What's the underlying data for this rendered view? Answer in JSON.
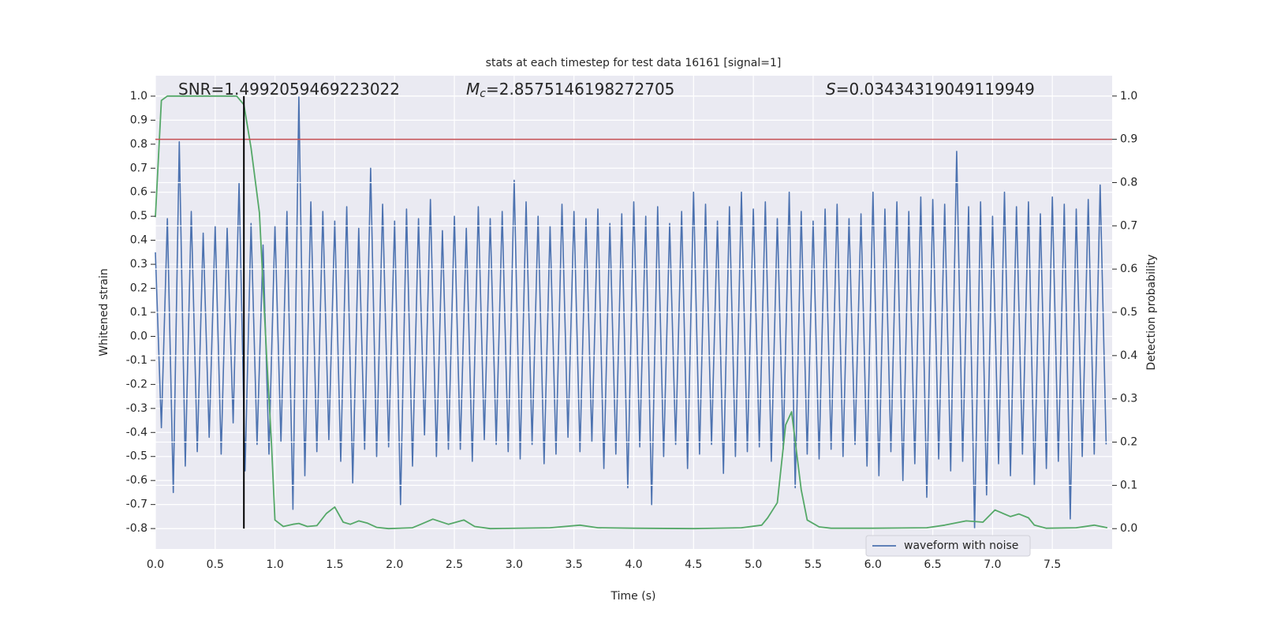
{
  "chart_data": {
    "type": "line",
    "title": "stats at each timestep for test data 16161 [signal=1]",
    "xlabel": "Time (s)",
    "ylabel": "Whitened strain",
    "y2label": "Detection probability",
    "annotations": [
      {
        "text": "SNR=1.4992059469223022"
      },
      {
        "symbol": "M",
        "subscript": "c",
        "text": "=2.8575146198272705"
      },
      {
        "symbol": "S",
        "text": "=0.03434319049119949"
      }
    ],
    "xlim": [
      0,
      8.0
    ],
    "ylim": [
      -0.885,
      1.085
    ],
    "y2lim": [
      -0.047,
      1.047
    ],
    "xticks": [
      {
        "value": 0,
        "label": "0.0"
      },
      0.5,
      {
        "value": 1,
        "label": "1.0"
      },
      1.5,
      {
        "value": 2,
        "label": "2.0"
      },
      2.5,
      {
        "value": 3,
        "label": "3.0"
      },
      3.5,
      {
        "value": 4,
        "label": "4.0"
      },
      4.5,
      {
        "value": 5,
        "label": "5.0"
      },
      5.5,
      {
        "value": 6,
        "label": "6.0"
      },
      6.5,
      {
        "value": 7,
        "label": "7.0"
      },
      7.5
    ],
    "yticks": [
      -0.8,
      -0.7,
      -0.6,
      -0.5,
      -0.4,
      -0.3,
      -0.2,
      -0.1,
      {
        "value": 0,
        "label": "0.0"
      },
      0.1,
      0.2,
      0.3,
      0.4,
      0.5,
      0.6,
      0.7,
      0.8,
      0.9,
      {
        "value": 1,
        "label": "1.0"
      }
    ],
    "y2ticks": [
      {
        "value": 0,
        "label": "0.0"
      },
      0.1,
      0.2,
      0.3,
      0.4,
      0.5,
      0.6,
      0.7,
      0.8,
      0.9,
      {
        "value": 1,
        "label": "1.0"
      }
    ],
    "grid": true,
    "legend": "lower right",
    "series": [
      {
        "name": "waveform with noise",
        "color": "#4c72b0",
        "x": [
          0,
          0.05,
          0.1,
          0.15,
          0.2,
          0.25,
          0.3,
          0.35,
          0.4,
          0.45,
          0.5,
          0.55,
          0.6,
          0.65,
          0.7,
          0.75,
          0.8,
          0.85,
          0.9,
          0.95,
          1,
          1.05,
          1.1,
          1.15,
          1.2,
          1.25,
          1.3,
          1.35,
          1.4,
          1.45,
          1.5,
          1.55,
          1.6,
          1.65,
          1.7,
          1.75,
          1.8,
          1.85,
          1.9,
          1.95,
          2,
          2.05,
          2.1,
          2.15,
          2.2,
          2.25,
          2.3,
          2.35,
          2.4,
          2.45,
          2.5,
          2.55,
          2.6,
          2.65,
          2.7,
          2.75,
          2.8,
          2.85,
          2.9,
          2.95,
          3,
          3.05,
          3.1,
          3.15,
          3.2,
          3.25,
          3.3,
          3.35,
          3.4,
          3.45,
          3.5,
          3.55,
          3.6,
          3.65,
          3.7,
          3.75,
          3.8,
          3.85,
          3.9,
          3.95,
          4,
          4.05,
          4.1,
          4.15,
          4.2,
          4.25,
          4.3,
          4.35,
          4.4,
          4.45,
          4.5,
          4.55,
          4.6,
          4.65,
          4.7,
          4.75,
          4.8,
          4.85,
          4.9,
          4.95,
          5,
          5.05,
          5.1,
          5.15,
          5.2,
          5.25,
          5.3,
          5.35,
          5.4,
          5.45,
          5.5,
          5.55,
          5.6,
          5.65,
          5.7,
          5.75,
          5.8,
          5.85,
          5.9,
          5.95,
          6,
          6.05,
          6.1,
          6.15,
          6.2,
          6.25,
          6.3,
          6.35,
          6.4,
          6.45,
          6.5,
          6.55,
          6.6,
          6.65,
          6.7,
          6.75,
          6.8,
          6.85,
          6.9,
          6.95,
          7,
          7.05,
          7.1,
          7.15,
          7.2,
          7.25,
          7.3,
          7.35,
          7.4,
          7.45,
          7.5,
          7.55,
          7.6,
          7.65,
          7.7,
          7.75,
          7.8,
          7.85,
          7.9,
          7.95
        ],
        "values": [
          0.35,
          -0.38,
          0.49,
          -0.65,
          0.81,
          -0.54,
          0.52,
          -0.48,
          0.43,
          -0.42,
          0.46,
          -0.49,
          0.45,
          -0.36,
          0.64,
          -0.56,
          0.47,
          -0.45,
          0.38,
          -0.49,
          0.46,
          -0.44,
          0.52,
          -0.72,
          1.0,
          -0.58,
          0.56,
          -0.48,
          0.52,
          -0.43,
          0.48,
          -0.52,
          0.54,
          -0.61,
          0.45,
          -0.47,
          0.7,
          -0.5,
          0.55,
          -0.46,
          0.48,
          -0.7,
          0.53,
          -0.54,
          0.49,
          -0.41,
          0.57,
          -0.5,
          0.44,
          -0.47,
          0.5,
          -0.47,
          0.45,
          -0.52,
          0.54,
          -0.43,
          0.49,
          -0.45,
          0.52,
          -0.48,
          0.65,
          -0.51,
          0.56,
          -0.45,
          0.5,
          -0.53,
          0.46,
          -0.49,
          0.55,
          -0.42,
          0.52,
          -0.48,
          0.49,
          -0.44,
          0.53,
          -0.55,
          0.47,
          -0.49,
          0.51,
          -0.63,
          0.56,
          -0.46,
          0.5,
          -0.7,
          0.54,
          -0.5,
          0.47,
          -0.45,
          0.52,
          -0.55,
          0.6,
          -0.49,
          0.55,
          -0.45,
          0.48,
          -0.57,
          0.54,
          -0.5,
          0.6,
          -0.48,
          0.53,
          -0.46,
          0.56,
          -0.52,
          0.49,
          -0.47,
          0.6,
          -0.63,
          0.52,
          -0.49,
          0.48,
          -0.51,
          0.53,
          -0.47,
          0.55,
          -0.5,
          0.49,
          -0.45,
          0.51,
          -0.54,
          0.6,
          -0.58,
          0.53,
          -0.48,
          0.56,
          -0.6,
          0.52,
          -0.53,
          0.58,
          -0.67,
          0.57,
          -0.51,
          0.55,
          -0.56,
          0.77,
          -0.52,
          0.54,
          -0.8,
          0.56,
          -0.66,
          0.5,
          -0.53,
          0.6,
          -0.58,
          0.54,
          -0.49,
          0.56,
          -0.62,
          0.51,
          -0.55,
          0.58,
          -0.52,
          0.55,
          -0.76,
          0.53,
          -0.5,
          0.57,
          -0.49,
          0.63,
          -0.45
        ]
      },
      {
        "color": "#55a868",
        "axis": "y2",
        "x": [
          0,
          0.05,
          0.1,
          0.2,
          0.4,
          0.6,
          0.68,
          0.74,
          0.8,
          0.87,
          0.93,
          0.97,
          1.0,
          1.07,
          1.15,
          1.2,
          1.27,
          1.35,
          1.43,
          1.5,
          1.57,
          1.63,
          1.7,
          1.77,
          1.85,
          1.95,
          2.15,
          2.22,
          2.32,
          2.45,
          2.58,
          2.67,
          2.8,
          3.3,
          3.55,
          3.7,
          4.0,
          4.5,
          4.9,
          5.07,
          5.12,
          5.2,
          5.27,
          5.32,
          5.4,
          5.45,
          5.55,
          5.65,
          6.0,
          6.45,
          6.6,
          6.78,
          6.92,
          7.02,
          7.15,
          7.22,
          7.3,
          7.35,
          7.45,
          7.7,
          7.85,
          7.96
        ],
        "values": [
          0.72,
          0.99,
          1.0,
          1.0,
          1.0,
          1.0,
          1.0,
          0.98,
          0.88,
          0.73,
          0.4,
          0.2,
          0.02,
          0.005,
          0.01,
          0.012,
          0.005,
          0.007,
          0.035,
          0.05,
          0.015,
          0.01,
          0.018,
          0.013,
          0.003,
          0.0,
          0.002,
          0.01,
          0.022,
          0.01,
          0.02,
          0.005,
          0.0,
          0.002,
          0.008,
          0.002,
          0.001,
          0.0,
          0.002,
          0.008,
          0.025,
          0.06,
          0.24,
          0.27,
          0.09,
          0.02,
          0.004,
          0.001,
          0.001,
          0.002,
          0.008,
          0.018,
          0.015,
          0.043,
          0.028,
          0.034,
          0.025,
          0.008,
          0.001,
          0.002,
          0.008,
          0.002
        ]
      }
    ],
    "threshold": {
      "value": 0.9,
      "axis": "y2",
      "color": "#c44e52"
    },
    "vline": {
      "x": 0.74,
      "ymin": -0.8,
      "ymax": 1.0,
      "color": "#000000"
    }
  }
}
